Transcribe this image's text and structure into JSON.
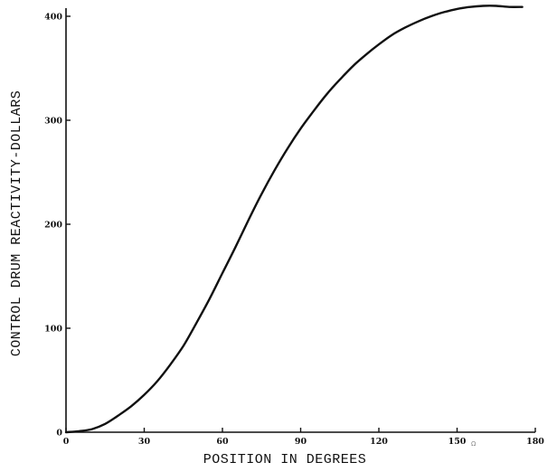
{
  "chart_data": {
    "type": "line",
    "title": "",
    "xlabel": "POSITION IN DEGREES",
    "ylabel": "CONTROL DRUM REACTIVITY-DOLLARS",
    "xlim": [
      0,
      180
    ],
    "ylim": [
      0,
      400
    ],
    "x_ticks": [
      0,
      30,
      60,
      90,
      120,
      150,
      180
    ],
    "x_tick_labels": [
      "0",
      "30",
      "60",
      "90",
      "120",
      "150",
      "180"
    ],
    "y_ticks": [
      0,
      100,
      200,
      300,
      400
    ],
    "y_tick_labels": [
      "0",
      "100",
      "200",
      "300",
      "400"
    ],
    "grid": false,
    "legend": "none",
    "series": [
      {
        "x": [
          0,
          5,
          10,
          15,
          20,
          25,
          30,
          35,
          40,
          45,
          50,
          55,
          60,
          65,
          70,
          75,
          80,
          85,
          90,
          95,
          100,
          105,
          110,
          115,
          120,
          125,
          130,
          135,
          140,
          145,
          150,
          155,
          160,
          165,
          170,
          175
        ],
        "y": [
          0,
          1,
          3,
          8,
          16,
          25,
          36,
          49,
          65,
          83,
          105,
          128,
          153,
          178,
          204,
          229,
          252,
          273,
          292,
          309,
          325,
          339,
          352,
          363,
          373,
          382,
          389,
          395,
          400,
          404,
          407,
          409,
          410,
          410,
          409,
          409
        ]
      }
    ],
    "corner_note": "Ω"
  }
}
